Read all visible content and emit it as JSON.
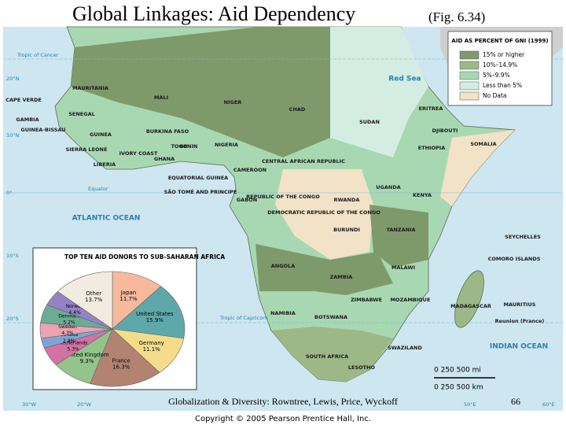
{
  "header": {
    "title": "Global Linkages: Aid Dependency",
    "subtitle": "(Fig. 6.34)"
  },
  "legend": {
    "title": "AID AS PERCENT OF GNI (1999)",
    "items": [
      {
        "label": "15% or higher",
        "color": "#7f9a6a"
      },
      {
        "label": "10%–14.9%",
        "color": "#9cb886"
      },
      {
        "label": "5%–9.9%",
        "color": "#a8d8b2"
      },
      {
        "label": "Less than 5%",
        "color": "#d4ede2"
      },
      {
        "label": "No Data",
        "color": "#f2e2c8"
      }
    ]
  },
  "map_labels": [
    "MAURITANIA",
    "MALI",
    "NIGER",
    "CHAD",
    "SUDAN",
    "ERITREA",
    "DJIBOUTI",
    "SOMALIA",
    "ETHIOPIA",
    "CAPE VERDE",
    "SENEGAL",
    "GAMBIA",
    "GUINEA-BISSAU",
    "GUINEA",
    "SIERRA LEONE",
    "LIBERIA",
    "IVORY COAST",
    "BURKINA FASO",
    "GHANA",
    "TOGO",
    "BENIN",
    "NIGERIA",
    "CAMEROON",
    "CENTRAL AFRICAN REPUBLIC",
    "EQUATORIAL GUINEA",
    "SÃO TOMÉ AND PRINCIPE",
    "GABON",
    "REPUBLIC OF THE CONGO",
    "DEMOCRATIC REPUBLIC OF THE CONGO",
    "UGANDA",
    "KENYA",
    "RWANDA",
    "BURUNDI",
    "TANZANIA",
    "SEYCHELLES",
    "COMORO ISLANDS",
    "ANGOLA",
    "ZAMBIA",
    "MALAWI",
    "MOZAMBIQUE",
    "ZIMBABWE",
    "MADAGASCAR",
    "MAURITIUS",
    "Reunion (France)",
    "NAMIBIA",
    "BOTSWANA",
    "SWAZILAND",
    "SOUTH AFRICA",
    "LESOTHO"
  ],
  "sea_labels": [
    "ATLANTIC OCEAN",
    "INDIAN OCEAN",
    "Red Sea"
  ],
  "grid_labels": [
    "Tropic of Cancer",
    "Equator",
    "Tropic of Capricorn",
    "20°N",
    "10°N",
    "0°",
    "10°S",
    "20°S",
    "30°W",
    "20°W",
    "50°E",
    "60°E"
  ],
  "scale": {
    "miles": "0    250    500 mi",
    "km": "0  250  500 km"
  },
  "chart_data": {
    "type": "pie",
    "title": "TOP TEN AID DONORS TO SUB-SAHARAN AFRICA",
    "categories": [
      "Japan",
      "United States",
      "Germany",
      "France",
      "United Kingdom",
      "Netherlands",
      "Canada",
      "Sweden",
      "Denmark",
      "Norway",
      "Other"
    ],
    "values": [
      11.7,
      15.9,
      11.1,
      16.3,
      9.3,
      5.3,
      2.8,
      4.3,
      5.2,
      4.4,
      13.7
    ],
    "value_labels": [
      "11.7%",
      "15.9%",
      "11.1%",
      "16.3%",
      "9.3%",
      "5.3%",
      "2.8%",
      "4.3%",
      "5.2%",
      "4.4%",
      "13.7%"
    ],
    "colors": [
      "#f6b99b",
      "#5ea8a9",
      "#f4dc8c",
      "#b38372",
      "#92c48c",
      "#d272a4",
      "#7fa4d4",
      "#eaa2b4",
      "#6cab94",
      "#9383c4",
      "#f4ebe0"
    ]
  },
  "footer": {
    "text": "Globalization & Diversity: Rowntree, Lewis, Price, Wyckoff",
    "page": "66",
    "copyright": "Copyright © 2005 Pearson Prentice Hall, Inc."
  }
}
